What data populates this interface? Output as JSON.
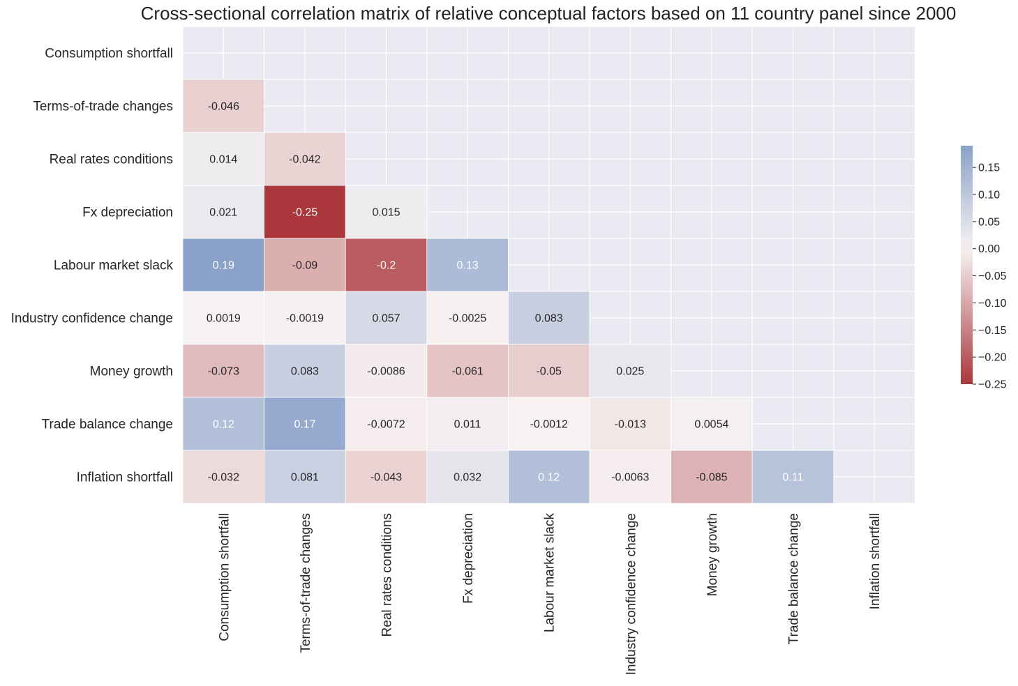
{
  "chart_data": {
    "type": "heatmap",
    "title": "Cross-sectional correlation matrix of relative conceptual factors based on 11 country panel since 2000",
    "row_labels": [
      "Consumption shortfall",
      "Terms-of-trade changes",
      "Real rates conditions",
      "Fx depreciation",
      "Labour market slack",
      "Industry confidence change",
      "Money growth",
      "Trade balance change",
      "Inflation shortfall"
    ],
    "col_labels": [
      "Consumption shortfall",
      "Terms-of-trade changes",
      "Real rates conditions",
      "Fx depreciation",
      "Labour market slack",
      "Industry confidence change",
      "Money growth",
      "Trade balance change",
      "Inflation shortfall"
    ],
    "cells": [
      {
        "row": 1,
        "col": 0,
        "value": -0.046,
        "label": "-0.046"
      },
      {
        "row": 2,
        "col": 0,
        "value": 0.014,
        "label": "0.014"
      },
      {
        "row": 2,
        "col": 1,
        "value": -0.042,
        "label": "-0.042"
      },
      {
        "row": 3,
        "col": 0,
        "value": 0.021,
        "label": "0.021"
      },
      {
        "row": 3,
        "col": 1,
        "value": -0.25,
        "label": "-0.25"
      },
      {
        "row": 3,
        "col": 2,
        "value": 0.015,
        "label": "0.015"
      },
      {
        "row": 4,
        "col": 0,
        "value": 0.19,
        "label": "0.19"
      },
      {
        "row": 4,
        "col": 1,
        "value": -0.09,
        "label": "-0.09"
      },
      {
        "row": 4,
        "col": 2,
        "value": -0.2,
        "label": "-0.2"
      },
      {
        "row": 4,
        "col": 3,
        "value": 0.13,
        "label": "0.13"
      },
      {
        "row": 5,
        "col": 0,
        "value": 0.0019,
        "label": "0.0019"
      },
      {
        "row": 5,
        "col": 1,
        "value": -0.0019,
        "label": "-0.0019"
      },
      {
        "row": 5,
        "col": 2,
        "value": 0.057,
        "label": "0.057"
      },
      {
        "row": 5,
        "col": 3,
        "value": -0.0025,
        "label": "-0.0025"
      },
      {
        "row": 5,
        "col": 4,
        "value": 0.083,
        "label": "0.083"
      },
      {
        "row": 6,
        "col": 0,
        "value": -0.073,
        "label": "-0.073"
      },
      {
        "row": 6,
        "col": 1,
        "value": 0.083,
        "label": "0.083"
      },
      {
        "row": 6,
        "col": 2,
        "value": -0.0086,
        "label": "-0.0086"
      },
      {
        "row": 6,
        "col": 3,
        "value": -0.061,
        "label": "-0.061"
      },
      {
        "row": 6,
        "col": 4,
        "value": -0.05,
        "label": "-0.05"
      },
      {
        "row": 6,
        "col": 5,
        "value": 0.025,
        "label": "0.025"
      },
      {
        "row": 7,
        "col": 0,
        "value": 0.12,
        "label": "0.12"
      },
      {
        "row": 7,
        "col": 1,
        "value": 0.17,
        "label": "0.17"
      },
      {
        "row": 7,
        "col": 2,
        "value": -0.0072,
        "label": "-0.0072"
      },
      {
        "row": 7,
        "col": 3,
        "value": 0.011,
        "label": "0.011"
      },
      {
        "row": 7,
        "col": 4,
        "value": -0.0012,
        "label": "-0.0012"
      },
      {
        "row": 7,
        "col": 5,
        "value": -0.013,
        "label": "-0.013"
      },
      {
        "row": 7,
        "col": 6,
        "value": 0.0054,
        "label": "0.0054"
      },
      {
        "row": 8,
        "col": 0,
        "value": -0.032,
        "label": "-0.032"
      },
      {
        "row": 8,
        "col": 1,
        "value": 0.081,
        "label": "0.081"
      },
      {
        "row": 8,
        "col": 2,
        "value": -0.043,
        "label": "-0.043"
      },
      {
        "row": 8,
        "col": 3,
        "value": 0.032,
        "label": "0.032"
      },
      {
        "row": 8,
        "col": 4,
        "value": 0.12,
        "label": "0.12"
      },
      {
        "row": 8,
        "col": 5,
        "value": -0.0063,
        "label": "-0.0063"
      },
      {
        "row": 8,
        "col": 6,
        "value": -0.085,
        "label": "-0.085"
      },
      {
        "row": 8,
        "col": 7,
        "value": 0.11,
        "label": "0.11"
      }
    ],
    "colorbar": {
      "vmin": -0.25,
      "vmax": 0.19,
      "ticks": [
        0.15,
        0.1,
        0.05,
        0.0,
        -0.05,
        -0.1,
        -0.15,
        -0.2,
        -0.25
      ],
      "tick_labels": [
        "0.15",
        "0.10",
        "0.05",
        "0.00",
        "−0.05",
        "−0.10",
        "−0.15",
        "−0.20",
        "−0.25"
      ]
    },
    "colors": {
      "negative": "#a9373b",
      "neutral": "#f7f2f2",
      "positive": "#6788bd",
      "background": "#eaeaf2",
      "grid": "#ffffff",
      "text_dark": "#262626",
      "text_light": "#ffffff"
    }
  }
}
